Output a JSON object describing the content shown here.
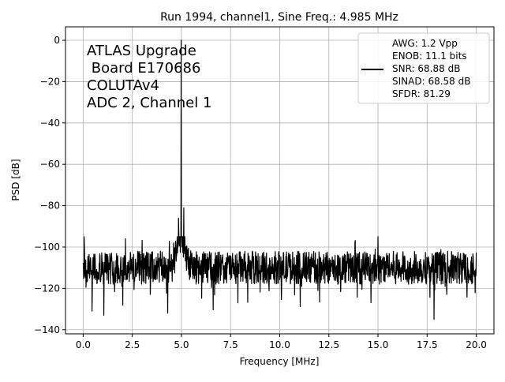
{
  "chart_data": {
    "type": "line",
    "title": "Run 1994, channel1, Sine Freq.: 4.985 MHz",
    "xlabel": "Frequency [MHz]",
    "ylabel": "PSD [dB]",
    "xlim": [
      -0.9,
      20.9
    ],
    "ylim": [
      -142,
      6.5
    ],
    "xticks": [
      0.0,
      2.5,
      5.0,
      7.5,
      10.0,
      12.5,
      15.0,
      17.5,
      20.0
    ],
    "xtick_labels": [
      "0.0",
      "2.5",
      "5.0",
      "7.5",
      "10.0",
      "12.5",
      "15.0",
      "17.5",
      "20.0"
    ],
    "yticks": [
      0,
      -20,
      -40,
      -60,
      -80,
      -100,
      -120,
      -140
    ],
    "ytick_labels": [
      "0",
      "−20",
      "−40",
      "−60",
      "−80",
      "−100",
      "−120",
      "−140"
    ],
    "grid": true,
    "line_color": "#000000",
    "annotation_lines": [
      "ATLAS Upgrade",
      " Board E170686",
      "COLUTAv4",
      "ADC 2, Channel 1"
    ],
    "legend": {
      "placement": "top-right",
      "entries": [
        "AWG: 1.2 Vpp",
        "ENOB: 11.1 bits",
        "SNR: 68.88 dB",
        "SINAD: 68.58 dB",
        "SFDR: 81.29"
      ]
    },
    "series": [
      {
        "noise_floor_db": -110,
        "noise_range_db": [
          -135,
          -95
        ],
        "peaks": [
          {
            "x": 4.985,
            "y": 0
          },
          {
            "x": 5.12,
            "y": -81
          },
          {
            "x": 4.85,
            "y": -86
          },
          {
            "x": 15.0,
            "y": -95
          },
          {
            "x": 0.05,
            "y": -95
          },
          {
            "x": 2.15,
            "y": -96
          },
          {
            "x": 4.6,
            "y": -98
          }
        ],
        "dips": [
          {
            "x": 17.85,
            "y": -135
          },
          {
            "x": 1.05,
            "y": -133
          },
          {
            "x": 4.3,
            "y": -132
          },
          {
            "x": 0.45,
            "y": -131
          }
        ]
      }
    ]
  }
}
